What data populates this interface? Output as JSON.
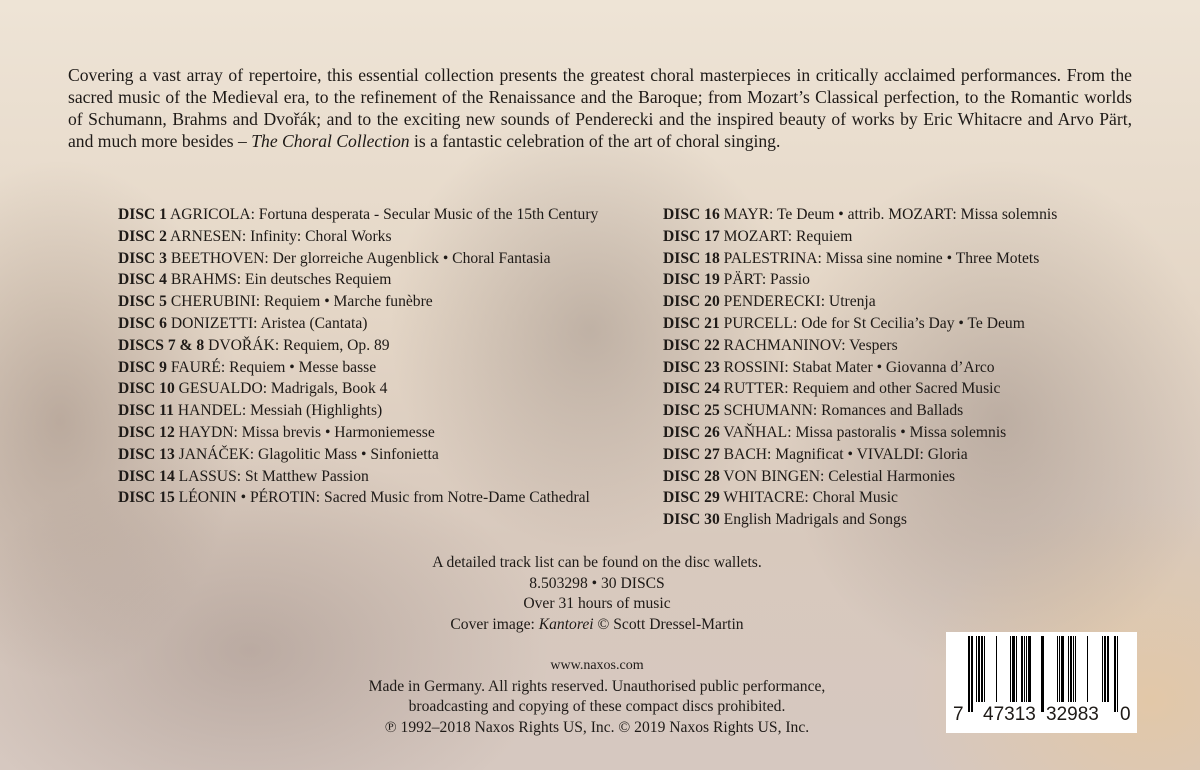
{
  "intro": {
    "before": "Covering a vast array of repertoire, this essential collection presents the greatest choral masterpieces in critically acclaimed performances. From the sacred music of the Medieval era, to the refinement of the Renaissance and the Baroque; from Mozart’s Classical perfection, to the Romantic worlds of Schumann, Brahms and Dvořák; and to the exciting new sounds of Penderecki and the inspired beauty of works by Eric Whitacre and Arvo Pärt, and much more besides – ",
    "title": "The Choral Collection",
    "after": " is a fantastic celebration of the art of choral singing."
  },
  "discs_left": [
    {
      "n": "DISC 1",
      "t": "AGRICOLA: Fortuna desperata - Secular Music of the 15th Century"
    },
    {
      "n": "DISC 2",
      "t": "ARNESEN: Infinity: Choral Works"
    },
    {
      "n": "DISC 3",
      "t": "BEETHOVEN: Der glorreiche Augenblick • Choral Fantasia"
    },
    {
      "n": "DISC 4",
      "t": "BRAHMS: Ein deutsches Requiem"
    },
    {
      "n": "DISC 5",
      "t": "CHERUBINI: Requiem • Marche funèbre"
    },
    {
      "n": "DISC 6",
      "t": "DONIZETTI: Aristea (Cantata)"
    },
    {
      "n": "DISCS 7 & 8",
      "t": "DVOŘÁK: Requiem, Op. 89"
    },
    {
      "n": "DISC 9",
      "t": "FAURÉ: Requiem • Messe basse"
    },
    {
      "n": "DISC 10",
      "t": "GESUALDO: Madrigals, Book 4"
    },
    {
      "n": "DISC 11",
      "t": "HANDEL: Messiah (Highlights)"
    },
    {
      "n": "DISC 12",
      "t": "HAYDN: Missa brevis • Harmoniemesse"
    },
    {
      "n": "DISC 13",
      "t": "JANÁČEK: Glagolitic Mass • Sinfonietta"
    },
    {
      "n": "DISC 14",
      "t": "LASSUS: St Matthew Passion"
    },
    {
      "n": "DISC 15",
      "t": "LÉONIN • PÉROTIN: Sacred Music from Notre-Dame Cathedral"
    }
  ],
  "discs_right": [
    {
      "n": "DISC 16",
      "t": "MAYR: Te Deum • attrib. MOZART: Missa solemnis"
    },
    {
      "n": "DISC 17",
      "t": "MOZART: Requiem"
    },
    {
      "n": "DISC 18",
      "t": "PALESTRINA: Missa sine nomine • Three Motets"
    },
    {
      "n": "DISC 19",
      "t": "PÄRT: Passio"
    },
    {
      "n": "DISC 20",
      "t": "PENDERECKI: Utrenja"
    },
    {
      "n": "DISC 21",
      "t": "PURCELL: Ode for St Cecilia’s Day • Te Deum"
    },
    {
      "n": "DISC 22",
      "t": "RACHMANINOV: Vespers"
    },
    {
      "n": "DISC 23",
      "t": "ROSSINI: Stabat Mater • Giovanna d’Arco"
    },
    {
      "n": "DISC 24",
      "t": "RUTTER: Requiem and other Sacred Music"
    },
    {
      "n": "DISC 25",
      "t": "SCHUMANN: Romances and Ballads"
    },
    {
      "n": "DISC 26",
      "t": "VAŇHAL: Missa pastoralis • Missa solemnis"
    },
    {
      "n": "DISC 27",
      "t": "BACH: Magnificat • VIVALDI: Gloria"
    },
    {
      "n": "DISC 28",
      "t": "VON BINGEN: Celestial Harmonies"
    },
    {
      "n": "DISC 29",
      "t": "WHITACRE: Choral Music"
    },
    {
      "n": "DISC 30",
      "t": "English Madrigals and Songs"
    }
  ],
  "info": {
    "tracklist": "A detailed track list can be found on the disc wallets.",
    "catalog": "8.503298 • 30 DISCS",
    "duration": "Over 31 hours of music",
    "cover_prefix": "Cover image: ",
    "cover_title": "Kantorei",
    "cover_suffix": " © Scott Dressel-Martin"
  },
  "legal": {
    "website": "www.naxos.com",
    "line1": "Made in Germany. All rights reserved. Unauthorised public performance,",
    "line2": "broadcasting and copying of these compact discs prohibited.",
    "line3": "℗ 1992–2018 Naxos Rights US, Inc. © 2019 Naxos Rights US, Inc."
  },
  "barcode": {
    "d1": "7",
    "d2": "47313",
    "d3": "32983",
    "d4": "0"
  }
}
